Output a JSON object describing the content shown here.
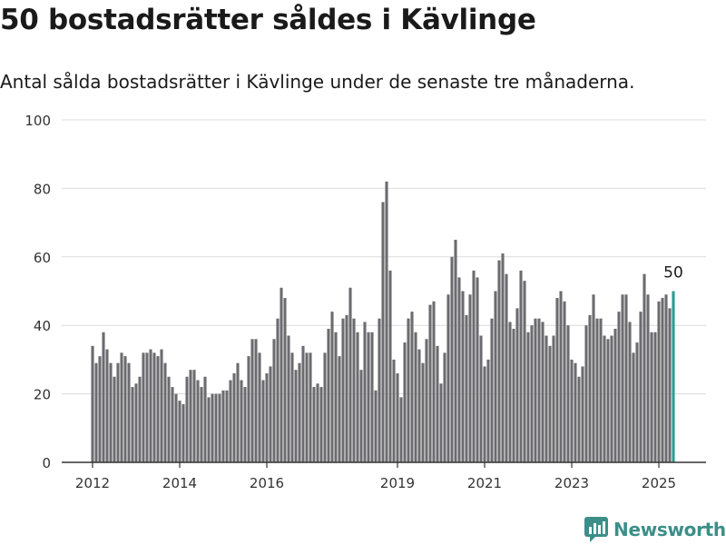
{
  "header": {
    "title": "50 bostadsrätter såldes i Kävlinge",
    "subtitle": "Antal sålda bostadsrätter i Kävlinge under de senaste tre månaderna."
  },
  "brand": {
    "name": "Newsworthy",
    "icon": "newsworthy-logo-icon",
    "color": "#3b8f88"
  },
  "colors": {
    "bar": "#6b6b70",
    "highlight": "#2a9d8f",
    "grid": "#dcdcdc",
    "axis": "#333333"
  },
  "chart_data": {
    "type": "bar",
    "title": "50 bostadsrätter såldes i Kävlinge",
    "ylim": [
      0,
      100
    ],
    "y_ticks": [
      0,
      20,
      40,
      60,
      80,
      100
    ],
    "x_tick_labels": [
      "2012",
      "2014",
      "2016",
      "2019",
      "2021",
      "2023",
      "2025"
    ],
    "x_tick_positions": [
      "2012-01",
      "2014-01",
      "2016-01",
      "2019-01",
      "2021-01",
      "2023-01",
      "2025-01"
    ],
    "grid": true,
    "first_period": "2012-01",
    "period_step": "month",
    "values": [
      34,
      29,
      31,
      38,
      33,
      29,
      25,
      29,
      32,
      31,
      29,
      22,
      23,
      25,
      32,
      32,
      33,
      32,
      31,
      33,
      29,
      25,
      22,
      20,
      18,
      17,
      25,
      27,
      27,
      24,
      22,
      25,
      19,
      20,
      20,
      20,
      21,
      21,
      24,
      26,
      29,
      24,
      22,
      31,
      36,
      36,
      32,
      24,
      26,
      28,
      36,
      42,
      51,
      48,
      37,
      32,
      27,
      29,
      34,
      32,
      32,
      22,
      23,
      22,
      32,
      39,
      44,
      38,
      31,
      42,
      43,
      51,
      42,
      38,
      27,
      41,
      38,
      38,
      21,
      42,
      76,
      82,
      56,
      30,
      26,
      19,
      35,
      42,
      44,
      38,
      33,
      29,
      36,
      46,
      47,
      34,
      23,
      32,
      49,
      60,
      65,
      54,
      50,
      43,
      49,
      56,
      54,
      37,
      28,
      30,
      42,
      50,
      59,
      61,
      55,
      41,
      39,
      45,
      56,
      53,
      38,
      40,
      42,
      42,
      41,
      37,
      34,
      37,
      48,
      50,
      47,
      40,
      30,
      29,
      25,
      28,
      40,
      43,
      49,
      42,
      42,
      37,
      36,
      37,
      39,
      44,
      49,
      49,
      41,
      32,
      35,
      44,
      55,
      49,
      38,
      38,
      47,
      48,
      49,
      45,
      50
    ],
    "highlight_last": true,
    "value_label": {
      "text": "50"
    }
  }
}
